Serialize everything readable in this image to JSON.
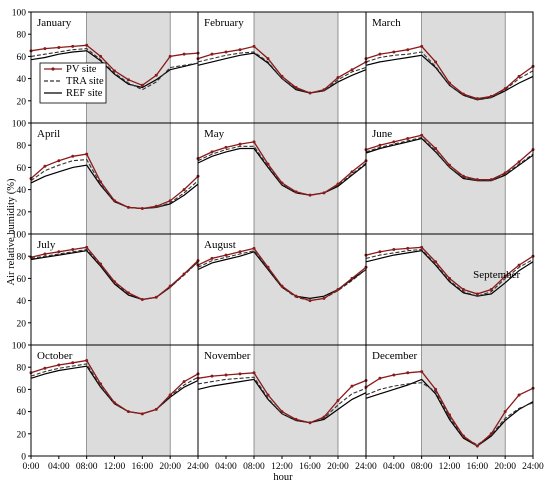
{
  "chart_data": {
    "type": "line",
    "ylabel": "Air relative humidity (%)",
    "xlabel": "hour",
    "ylim": [
      0,
      100
    ],
    "yticks": [
      0,
      20,
      40,
      60,
      80,
      100
    ],
    "xlim": [
      0,
      24
    ],
    "xticks": [
      0,
      4,
      8,
      12,
      16,
      20,
      24
    ],
    "xtick_labels": [
      "0:00",
      "04:00",
      "08:00",
      "12:00",
      "16:00",
      "20:00",
      "24:00"
    ],
    "grid": false,
    "shaded_interval_hours": [
      8,
      20
    ],
    "shading_color": "#dcdcdc",
    "legend": {
      "placement": "inside first panel, left",
      "entries": [
        {
          "name": "PV site",
          "color": "#8b1a1a",
          "style": "solid with dot markers"
        },
        {
          "name": "TRA site",
          "color": "#333333",
          "style": "dashed"
        },
        {
          "name": "REF site",
          "color": "#000000",
          "style": "solid"
        }
      ]
    },
    "series_names": [
      "PV site",
      "TRA site",
      "REF site"
    ],
    "hours": [
      0,
      2,
      4,
      6,
      8,
      10,
      12,
      14,
      16,
      18,
      20,
      22,
      24
    ],
    "panels": [
      {
        "month": "January",
        "pv": [
          65,
          67,
          68,
          69,
          70,
          60,
          47,
          39,
          34,
          43,
          60,
          62,
          63
        ],
        "tra": [
          60,
          62,
          64,
          66,
          67,
          57,
          45,
          36,
          30,
          37,
          50,
          52,
          54
        ],
        "ref": [
          57,
          59,
          62,
          64,
          65,
          56,
          44,
          35,
          32,
          39,
          48,
          51,
          54
        ]
      },
      {
        "month": "February",
        "pv": [
          58,
          62,
          64,
          66,
          69,
          58,
          42,
          32,
          27,
          30,
          41,
          48,
          55
        ],
        "tra": [
          55,
          58,
          61,
          63,
          64,
          55,
          40,
          31,
          27,
          29,
          39,
          46,
          50
        ],
        "ref": [
          52,
          55,
          58,
          61,
          63,
          54,
          40,
          30,
          27,
          29,
          37,
          43,
          48
        ]
      },
      {
        "month": "March",
        "pv": [
          58,
          62,
          64,
          66,
          69,
          55,
          36,
          26,
          22,
          24,
          31,
          42,
          51
        ],
        "tra": [
          55,
          59,
          61,
          62,
          64,
          51,
          34,
          25,
          21,
          23,
          30,
          40,
          47
        ],
        "ref": [
          52,
          55,
          57,
          59,
          61,
          50,
          34,
          25,
          21,
          23,
          29,
          36,
          42
        ]
      },
      {
        "month": "April",
        "pv": [
          50,
          61,
          66,
          70,
          72,
          47,
          30,
          24,
          23,
          25,
          30,
          40,
          52
        ],
        "tra": [
          48,
          57,
          62,
          66,
          67,
          45,
          29,
          24,
          23,
          24,
          28,
          37,
          48
        ],
        "ref": [
          46,
          52,
          56,
          60,
          62,
          44,
          29,
          24,
          23,
          24,
          27,
          35,
          45
        ]
      },
      {
        "month": "May",
        "pv": [
          68,
          74,
          78,
          81,
          83,
          63,
          46,
          38,
          35,
          37,
          45,
          56,
          66
        ],
        "tra": [
          66,
          72,
          76,
          79,
          79,
          61,
          45,
          37,
          35,
          37,
          44,
          54,
          64
        ],
        "ref": [
          64,
          70,
          74,
          77,
          77,
          60,
          44,
          37,
          35,
          37,
          43,
          53,
          63
        ]
      },
      {
        "month": "June",
        "pv": [
          76,
          80,
          83,
          86,
          89,
          77,
          62,
          52,
          49,
          49,
          55,
          65,
          76
        ],
        "tra": [
          74,
          78,
          81,
          84,
          87,
          75,
          60,
          51,
          48,
          48,
          54,
          63,
          72
        ],
        "ref": [
          73,
          77,
          80,
          83,
          86,
          74,
          60,
          50,
          48,
          48,
          53,
          62,
          71
        ]
      },
      {
        "month": "July",
        "pv": [
          79,
          82,
          84,
          86,
          88,
          73,
          57,
          47,
          41,
          43,
          53,
          64,
          76
        ],
        "tra": [
          78,
          80,
          82,
          84,
          86,
          72,
          56,
          46,
          41,
          43,
          52,
          63,
          75
        ],
        "ref": [
          77,
          79,
          81,
          83,
          85,
          71,
          55,
          45,
          41,
          43,
          52,
          64,
          75
        ]
      },
      {
        "month": "August",
        "pv": [
          72,
          78,
          81,
          84,
          87,
          70,
          53,
          44,
          40,
          42,
          50,
          60,
          70
        ],
        "tra": [
          70,
          76,
          79,
          82,
          85,
          69,
          52,
          43,
          40,
          42,
          49,
          58,
          68
        ],
        "ref": [
          68,
          74,
          77,
          80,
          84,
          68,
          52,
          44,
          42,
          44,
          50,
          59,
          68
        ]
      },
      {
        "month": "September",
        "pv": [
          81,
          84,
          86,
          87,
          88,
          75,
          60,
          50,
          46,
          50,
          62,
          72,
          80
        ],
        "tra": [
          78,
          81,
          83,
          85,
          86,
          73,
          58,
          48,
          44,
          48,
          60,
          70,
          77
        ],
        "ref": [
          75,
          78,
          81,
          83,
          85,
          72,
          57,
          47,
          44,
          46,
          56,
          67,
          75
        ]
      },
      {
        "month": "October",
        "pv": [
          75,
          79,
          82,
          84,
          86,
          65,
          48,
          40,
          38,
          42,
          55,
          67,
          74
        ],
        "tra": [
          72,
          76,
          79,
          81,
          83,
          63,
          47,
          40,
          38,
          42,
          54,
          64,
          71
        ],
        "ref": [
          70,
          74,
          77,
          79,
          81,
          62,
          47,
          40,
          38,
          42,
          53,
          62,
          68
        ]
      },
      {
        "month": "November",
        "pv": [
          70,
          72,
          73,
          74,
          75,
          55,
          40,
          33,
          30,
          35,
          50,
          63,
          68
        ],
        "tra": [
          65,
          67,
          69,
          70,
          71,
          52,
          38,
          32,
          30,
          34,
          46,
          56,
          61
        ],
        "ref": [
          60,
          63,
          65,
          67,
          69,
          51,
          38,
          32,
          30,
          33,
          42,
          51,
          57
        ]
      },
      {
        "month": "December",
        "pv": [
          62,
          70,
          73,
          75,
          76,
          60,
          37,
          18,
          9,
          20,
          40,
          55,
          61
        ],
        "tra": [
          55,
          60,
          63,
          65,
          66,
          58,
          35,
          17,
          10,
          19,
          34,
          43,
          48
        ],
        "ref": [
          52,
          56,
          60,
          64,
          69,
          56,
          33,
          16,
          9,
          18,
          32,
          42,
          49
        ]
      }
    ]
  }
}
